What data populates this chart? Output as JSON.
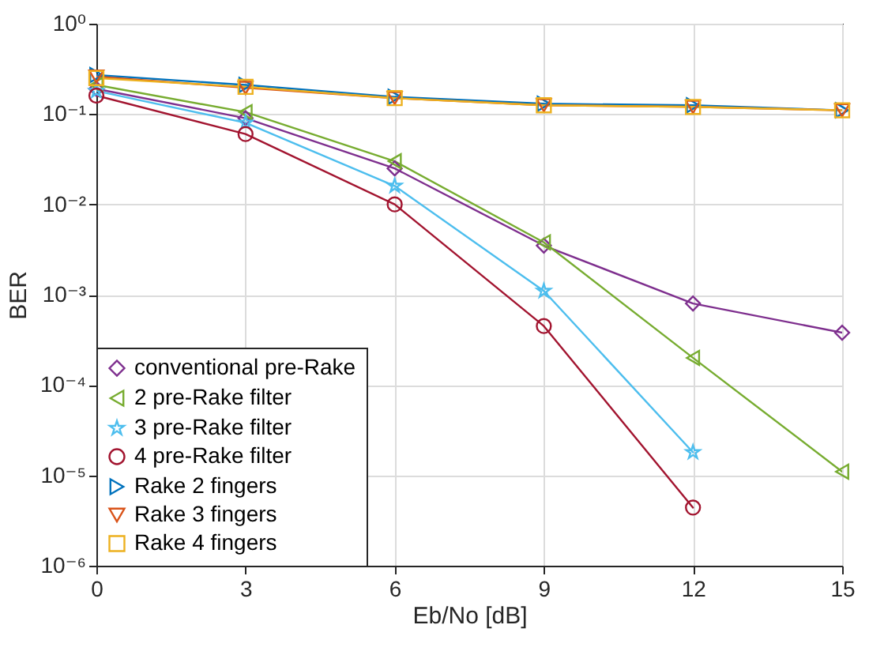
{
  "chart_data": {
    "type": "line",
    "xlabel": "Eb/No [dB]",
    "ylabel": "BER",
    "x": [
      0,
      3,
      6,
      9,
      12,
      15
    ],
    "series": [
      {
        "name": "conventional pre-Rake",
        "color": "#7e2f8e",
        "marker": "diamond",
        "values": [
          0.19,
          0.09,
          0.025,
          0.0035,
          0.0008,
          0.00038
        ]
      },
      {
        "name": "2 pre-Rake filter",
        "color": "#77ac30",
        "marker": "triangle-left",
        "values": [
          0.21,
          0.105,
          0.03,
          0.0038,
          0.0002,
          1.1e-05
        ]
      },
      {
        "name": "3 pre-Rake filter",
        "color": "#4dbeee",
        "marker": "star",
        "values": [
          0.18,
          0.08,
          0.016,
          0.0011,
          1.8e-05,
          null
        ]
      },
      {
        "name": "4 pre-Rake filter",
        "color": "#a2142f",
        "marker": "circle",
        "values": [
          0.16,
          0.06,
          0.01,
          0.00045,
          4.4e-06,
          null
        ]
      },
      {
        "name": "Rake 2 fingers",
        "color": "#0072bd",
        "marker": "triangle-right",
        "values": [
          0.27,
          0.21,
          0.155,
          0.13,
          0.125,
          0.11
        ]
      },
      {
        "name": "Rake 3 fingers",
        "color": "#d95319",
        "marker": "triangle-down",
        "values": [
          0.26,
          0.195,
          0.15,
          0.125,
          0.12,
          0.11
        ]
      },
      {
        "name": "Rake 4 fingers",
        "color": "#edb120",
        "marker": "square",
        "values": [
          0.25,
          0.2,
          0.15,
          0.125,
          0.12,
          0.11
        ]
      }
    ],
    "xlim": [
      0,
      15
    ],
    "xticks": [
      0,
      3,
      6,
      9,
      12,
      15
    ],
    "ylim": [
      1e-06,
      1
    ],
    "yticks": [
      {
        "value": 1e-06,
        "label": "10⁻⁶"
      },
      {
        "value": 1e-05,
        "label": "10⁻⁵"
      },
      {
        "value": 0.0001,
        "label": "10⁻⁴"
      },
      {
        "value": 0.001,
        "label": "10⁻³"
      },
      {
        "value": 0.01,
        "label": "10⁻²"
      },
      {
        "value": 0.1,
        "label": "10⁻¹"
      },
      {
        "value": 1,
        "label": "10⁰"
      }
    ],
    "log": "y",
    "grid": true,
    "legend": "bottom left",
    "line_style": "solid"
  }
}
